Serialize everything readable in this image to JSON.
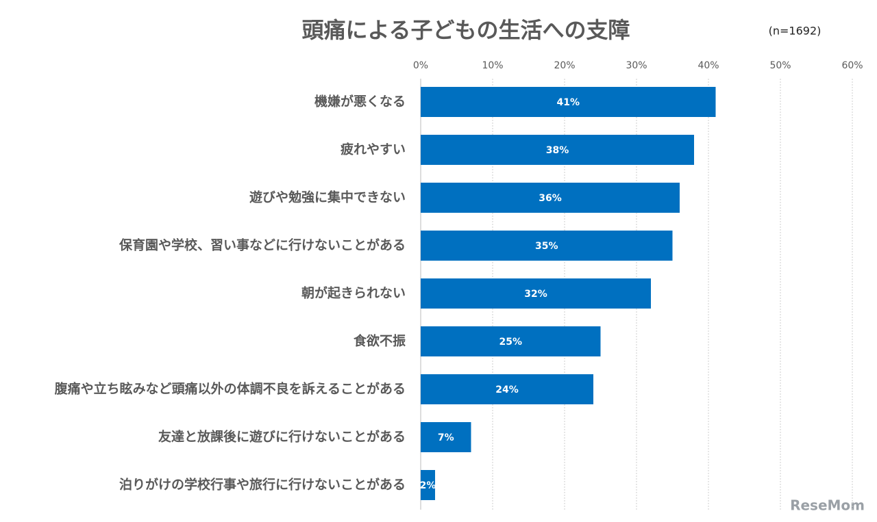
{
  "chart_data": {
    "type": "barh",
    "title": "頭痛による子どもの生活への支障",
    "subtitle": "(n=1692)",
    "categories": [
      "機嫌が悪くなる",
      "疲れやすい",
      "遊びや勉強に集中できない",
      "保育園や学校、習い事などに行けないことがある",
      "朝が起きられない",
      "食欲不振",
      "腹痛や立ち眩みなど頭痛以外の体調不良を訴えることがある",
      "友達と放課後に遊びに行けないことがある",
      "泊りがけの学校行事や旅行に行けないことがある"
    ],
    "values": [
      41,
      38,
      36,
      35,
      32,
      25,
      24,
      7,
      2
    ],
    "value_labels": [
      "41%",
      "38%",
      "36%",
      "35%",
      "32%",
      "25%",
      "24%",
      "7%",
      "2%"
    ],
    "color": "#0070c0",
    "xlim": [
      0,
      60
    ],
    "xticks": [
      {
        "value": 0,
        "label": "0%"
      },
      {
        "value": 10,
        "label": "10%"
      },
      {
        "value": 20,
        "label": "20%"
      },
      {
        "value": 30,
        "label": "30%"
      },
      {
        "value": 40,
        "label": "40%"
      },
      {
        "value": 50,
        "label": "50%"
      },
      {
        "value": 60,
        "label": "60%"
      }
    ],
    "grid": true,
    "watermark": "ReseMom"
  }
}
